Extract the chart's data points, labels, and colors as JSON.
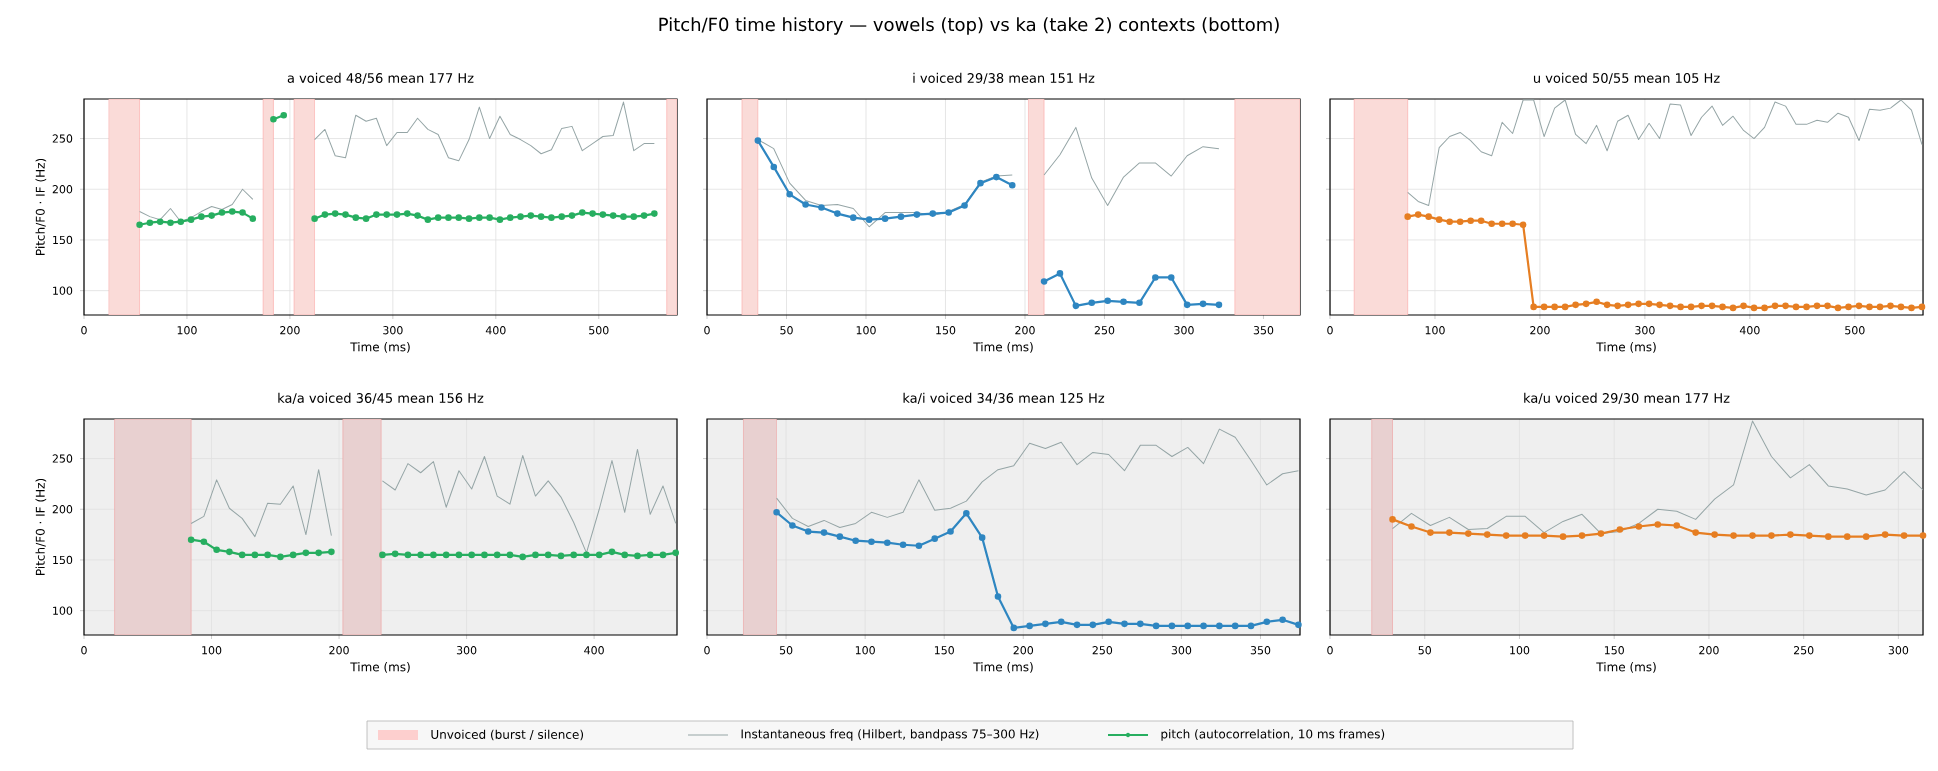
{
  "chart_data": [
    {
      "type": "line",
      "title": "a  voiced 48/56  mean 177 Hz",
      "xlabel": "Time (ms)",
      "ylabel": "Pitch/F0 · IF (Hz)",
      "xlim": [
        0,
        576
      ],
      "ylim": [
        76,
        289
      ],
      "xticks": [
        0,
        100,
        200,
        300,
        400,
        500
      ],
      "yticks": [
        100,
        150,
        200,
        250
      ],
      "grid": true,
      "legend": "bottom",
      "annotations": [
        "Pitch/F0 time history — vowels (top) vs ka (take 2) contexts (bottom)"
      ],
      "bands": [
        {
          "axis": "x",
          "from": 24,
          "to": 54,
          "label": "Unvoiced (burst / silence)",
          "color": "#fadbd8"
        },
        {
          "axis": "x",
          "from": 174,
          "to": 184,
          "color": "#fadbd8"
        },
        {
          "axis": "x",
          "from": 204,
          "to": 224,
          "color": "#fadbd8"
        },
        {
          "axis": "x",
          "from": 566,
          "to": 576,
          "color": "#fadbd8"
        }
      ],
      "series": [
        {
          "name": "Instantaneous freq (Hilbert, bandpass 75–300 Hz)",
          "color": "#95a5a6",
          "marker": "none",
          "line_style": "solid",
          "x": [
            54,
            64,
            74,
            84,
            94,
            104,
            114,
            124,
            134,
            144,
            154,
            164,
            174,
            184,
            194,
            204,
            214,
            224,
            234,
            244,
            254,
            264,
            274,
            284,
            294,
            304,
            314,
            324,
            334,
            344,
            354,
            364,
            374,
            384,
            394,
            404,
            414,
            424,
            434,
            444,
            454,
            464,
            474,
            484,
            494,
            504,
            514,
            524,
            534,
            544,
            554
          ],
          "values": [
            178,
            173,
            170,
            181,
            168,
            172,
            178,
            183,
            180,
            185,
            200,
            190,
            null,
            null,
            null,
            null,
            null,
            249,
            259,
            233,
            231,
            273,
            267,
            270,
            243,
            256,
            256,
            270,
            259,
            254,
            231,
            228,
            249,
            281,
            250,
            272,
            254,
            249,
            243,
            235,
            239,
            260,
            262,
            238,
            245,
            252,
            253,
            286,
            238,
            245,
            245
          ]
        },
        {
          "name": "pitch (autocorrelation, 10 ms frames)",
          "color": "#27ae60",
          "marker": "circle",
          "line_style": "solid",
          "x": [
            54,
            64,
            74,
            84,
            94,
            104,
            114,
            124,
            134,
            144,
            154,
            164,
            174,
            184,
            194,
            204,
            214,
            224,
            234,
            244,
            254,
            264,
            274,
            284,
            294,
            304,
            314,
            324,
            334,
            344,
            354,
            364,
            374,
            384,
            394,
            404,
            414,
            424,
            434,
            444,
            454,
            464,
            474,
            484,
            494,
            504,
            514,
            524,
            534,
            544,
            554
          ],
          "values": [
            165,
            167,
            168,
            167,
            168,
            170,
            173,
            174,
            177,
            178,
            177,
            171,
            null,
            269,
            273,
            null,
            null,
            171,
            175,
            176,
            175,
            172,
            171,
            175,
            175,
            175,
            176,
            174,
            170,
            172,
            172,
            172,
            171,
            172,
            172,
            170,
            172,
            173,
            174,
            173,
            172,
            173,
            174,
            177,
            176,
            175,
            174,
            173,
            173,
            174,
            176
          ]
        }
      ]
    },
    {
      "type": "line",
      "title": "i  voiced 29/38  mean 151 Hz",
      "xlabel": "Time (ms)",
      "xlim": [
        0,
        373
      ],
      "ylim": [
        76,
        289
      ],
      "xticks": [
        0,
        50,
        100,
        150,
        200,
        250,
        300,
        350
      ],
      "yticks": [
        100,
        150,
        200,
        250
      ],
      "grid": true,
      "tick_labels": "x",
      "bands": [
        {
          "axis": "x",
          "from": 22,
          "to": 32,
          "color": "#fadbd8"
        },
        {
          "axis": "x",
          "from": 202,
          "to": 212,
          "color": "#fadbd8"
        },
        {
          "axis": "x",
          "from": 332,
          "to": 373,
          "color": "#fadbd8"
        }
      ],
      "series": [
        {
          "color": "#95a5a6",
          "marker": "none",
          "line_style": "solid",
          "x": [
            32,
            42,
            52,
            62,
            72,
            82,
            92,
            102,
            112,
            122,
            132,
            142,
            152,
            162,
            172,
            182,
            192,
            202,
            212,
            222,
            232,
            242,
            252,
            262,
            272,
            282,
            292,
            302,
            312,
            322
          ],
          "values": [
            249,
            240,
            206,
            189,
            184,
            185,
            181,
            163,
            177,
            177,
            177,
            174,
            178,
            185,
            207,
            213,
            214,
            null,
            214,
            234,
            261,
            211,
            184,
            212,
            226,
            226,
            213,
            233,
            242,
            240
          ]
        },
        {
          "color": "#2e86c1",
          "marker": "circle",
          "line_style": "solid",
          "x": [
            32,
            42,
            52,
            62,
            72,
            82,
            92,
            102,
            112,
            122,
            132,
            142,
            152,
            162,
            172,
            182,
            192,
            202,
            212,
            222,
            232,
            242,
            252,
            262,
            272,
            282,
            292,
            302,
            312,
            322
          ],
          "values": [
            248,
            222,
            195,
            185,
            182,
            176,
            172,
            170,
            171,
            173,
            175,
            176,
            177,
            184,
            206,
            212,
            204,
            null,
            109,
            117,
            85,
            88,
            90,
            89,
            88,
            113,
            113,
            86,
            87,
            86
          ]
        }
      ]
    },
    {
      "type": "line",
      "title": "u  voiced 50/55  mean 105 Hz",
      "xlabel": "Time (ms)",
      "xlim": [
        0,
        565
      ],
      "ylim": [
        76,
        289
      ],
      "xticks": [
        0,
        100,
        200,
        300,
        400,
        500
      ],
      "yticks": [
        100,
        150,
        200,
        250
      ],
      "grid": true,
      "tick_labels": "x",
      "bands": [
        {
          "axis": "x",
          "from": 23,
          "to": 74,
          "color": "#fadbd8"
        }
      ],
      "series": [
        {
          "color": "#95a5a6",
          "marker": "none",
          "line_style": "solid",
          "x": [
            74,
            84,
            94,
            104,
            114,
            124,
            134,
            144,
            154,
            164,
            174,
            184,
            194,
            204,
            214,
            224,
            234,
            244,
            254,
            264,
            274,
            284,
            294,
            304,
            314,
            324,
            334,
            344,
            354,
            364,
            374,
            384,
            394,
            404,
            414,
            424,
            434,
            444,
            454,
            464,
            474,
            484,
            494,
            504,
            514,
            524,
            534,
            544,
            554,
            564
          ],
          "values": [
            197,
            188,
            184,
            241,
            252,
            256,
            248,
            237,
            233,
            266,
            255,
            288,
            288,
            252,
            280,
            288,
            254,
            245,
            263,
            238,
            267,
            273,
            249,
            265,
            250,
            284,
            283,
            253,
            271,
            282,
            263,
            272,
            258,
            250,
            261,
            286,
            282,
            264,
            264,
            268,
            266,
            275,
            271,
            248,
            279,
            278,
            280,
            288,
            278,
            244
          ]
        },
        {
          "color": "#e67e22",
          "marker": "circle",
          "line_style": "solid",
          "x": [
            74,
            84,
            94,
            104,
            114,
            124,
            134,
            144,
            154,
            164,
            174,
            184,
            194,
            204,
            214,
            224,
            234,
            244,
            254,
            264,
            274,
            284,
            294,
            304,
            314,
            324,
            334,
            344,
            354,
            364,
            374,
            384,
            394,
            404,
            414,
            424,
            434,
            444,
            454,
            464,
            474,
            484,
            494,
            504,
            514,
            524,
            534,
            544,
            554,
            564
          ],
          "values": [
            173,
            175,
            173,
            170,
            168,
            168,
            169,
            169,
            166,
            166,
            166,
            165,
            84,
            84,
            84,
            84,
            86,
            87,
            89,
            86,
            85,
            86,
            87,
            87,
            86,
            85,
            84,
            84,
            85,
            85,
            84,
            83,
            85,
            83,
            83,
            85,
            85,
            84,
            84,
            85,
            85,
            83,
            84,
            85,
            84,
            84,
            85,
            84,
            83,
            84
          ]
        }
      ]
    },
    {
      "type": "line",
      "title": "ka/a  voiced 36/45  mean 156 Hz",
      "xlabel": "Time (ms)",
      "ylabel": "Pitch/F0 · IF (Hz)",
      "xlim": [
        0,
        465
      ],
      "ylim": [
        76,
        289
      ],
      "xticks": [
        0,
        100,
        200,
        300,
        400
      ],
      "yticks": [
        100,
        150,
        200,
        250
      ],
      "grid": true,
      "bands": [
        {
          "axis": "x",
          "from": 24,
          "to": 84,
          "color": "#e8d0d0"
        },
        {
          "axis": "x",
          "from": 203,
          "to": 233,
          "color": "#e8d0d0"
        }
      ],
      "series": [
        {
          "color": "#95a5a6",
          "marker": "none",
          "line_style": "solid",
          "x": [
            84,
            94,
            104,
            114,
            124,
            134,
            144,
            154,
            164,
            174,
            184,
            194,
            204,
            214,
            224,
            234,
            244,
            254,
            264,
            274,
            284,
            294,
            304,
            314,
            324,
            334,
            344,
            354,
            364,
            374,
            384,
            394,
            404,
            414,
            424,
            434,
            444,
            454,
            464
          ],
          "values": [
            186,
            193,
            229,
            201,
            191,
            173,
            206,
            205,
            223,
            175,
            239,
            174,
            null,
            null,
            null,
            228,
            219,
            245,
            236,
            247,
            202,
            238,
            220,
            252,
            213,
            205,
            253,
            213,
            228,
            212,
            187,
            157,
            200,
            248,
            197,
            259,
            195,
            223,
            186
          ]
        },
        {
          "color": "#27ae60",
          "marker": "circle",
          "line_style": "solid",
          "x": [
            84,
            94,
            104,
            114,
            124,
            134,
            144,
            154,
            164,
            174,
            184,
            194,
            204,
            214,
            224,
            234,
            244,
            254,
            264,
            274,
            284,
            294,
            304,
            314,
            324,
            334,
            344,
            354,
            364,
            374,
            384,
            394,
            404,
            414,
            424,
            434,
            444,
            454,
            464
          ],
          "values": [
            170,
            168,
            160,
            158,
            155,
            155,
            155,
            153,
            155,
            157,
            157,
            158,
            null,
            null,
            null,
            155,
            156,
            155,
            155,
            155,
            155,
            155,
            155,
            155,
            155,
            155,
            153,
            155,
            155,
            154,
            155,
            155,
            155,
            158,
            155,
            154,
            155,
            155,
            157
          ]
        }
      ]
    },
    {
      "type": "line",
      "title": "ka/i  voiced 34/36  mean 125 Hz",
      "xlabel": "Time (ms)",
      "xlim": [
        0,
        375
      ],
      "ylim": [
        76,
        289
      ],
      "xticks": [
        0,
        50,
        100,
        150,
        200,
        250,
        300,
        350
      ],
      "yticks": [
        100,
        150,
        200,
        250
      ],
      "grid": true,
      "tick_labels": "x",
      "bands": [
        {
          "axis": "x",
          "from": 23,
          "to": 44,
          "color": "#e8d0d0"
        }
      ],
      "series": [
        {
          "color": "#95a5a6",
          "marker": "none",
          "line_style": "solid",
          "x": [
            44,
            54,
            64,
            74,
            84,
            94,
            104,
            114,
            124,
            134,
            144,
            154,
            164,
            174,
            184,
            194,
            204,
            214,
            224,
            234,
            244,
            254,
            264,
            274,
            284,
            294,
            304,
            314,
            324,
            334,
            344,
            354,
            364,
            374
          ],
          "values": [
            211,
            191,
            183,
            189,
            182,
            186,
            197,
            192,
            197,
            229,
            199,
            201,
            208,
            227,
            239,
            243,
            265,
            260,
            266,
            244,
            256,
            254,
            238,
            263,
            263,
            252,
            261,
            245,
            279,
            271,
            248,
            224,
            235,
            238
          ]
        },
        {
          "color": "#2e86c1",
          "marker": "circle",
          "line_style": "solid",
          "x": [
            44,
            54,
            64,
            74,
            84,
            94,
            104,
            114,
            124,
            134,
            144,
            154,
            164,
            174,
            184,
            194,
            204,
            214,
            224,
            234,
            244,
            254,
            264,
            274,
            284,
            294,
            304,
            314,
            324,
            334,
            344,
            354,
            364,
            374
          ],
          "values": [
            197,
            184,
            178,
            177,
            173,
            169,
            168,
            167,
            165,
            164,
            171,
            178,
            196,
            172,
            114,
            83,
            85,
            87,
            89,
            86,
            86,
            89,
            87,
            87,
            85,
            85,
            85,
            85,
            85,
            85,
            85,
            89,
            91,
            86
          ]
        }
      ]
    },
    {
      "type": "line",
      "title": "ka/u  voiced 29/30  mean 177 Hz",
      "xlabel": "Time (ms)",
      "xlim": [
        0,
        313
      ],
      "ylim": [
        76,
        289
      ],
      "xticks": [
        0,
        50,
        100,
        150,
        200,
        250,
        300
      ],
      "yticks": [
        100,
        150,
        200,
        250
      ],
      "grid": true,
      "tick_labels": "x",
      "bands": [
        {
          "axis": "x",
          "from": 22,
          "to": 33,
          "color": "#e8d0d0"
        }
      ],
      "series": [
        {
          "color": "#95a5a6",
          "marker": "none",
          "line_style": "solid",
          "x": [
            33,
            43,
            53,
            63,
            73,
            83,
            93,
            103,
            113,
            123,
            133,
            143,
            153,
            163,
            173,
            183,
            193,
            203,
            213,
            223,
            233,
            243,
            253,
            263,
            273,
            283,
            293,
            303,
            313
          ],
          "values": [
            181,
            196,
            184,
            192,
            180,
            181,
            193,
            193,
            177,
            188,
            195,
            176,
            178,
            186,
            200,
            198,
            190,
            210,
            224,
            287,
            252,
            231,
            244,
            223,
            220,
            214,
            219,
            237,
            219
          ]
        },
        {
          "color": "#e67e22",
          "marker": "circle",
          "line_style": "solid",
          "x": [
            33,
            43,
            53,
            63,
            73,
            83,
            93,
            103,
            113,
            123,
            133,
            143,
            153,
            163,
            173,
            183,
            193,
            203,
            213,
            223,
            233,
            243,
            253,
            263,
            273,
            283,
            293,
            303,
            313
          ],
          "values": [
            190,
            183,
            177,
            177,
            176,
            175,
            174,
            174,
            174,
            173,
            174,
            176,
            180,
            183,
            185,
            184,
            177,
            175,
            174,
            174,
            174,
            175,
            174,
            173,
            173,
            173,
            175,
            174,
            174
          ]
        }
      ]
    }
  ]
}
